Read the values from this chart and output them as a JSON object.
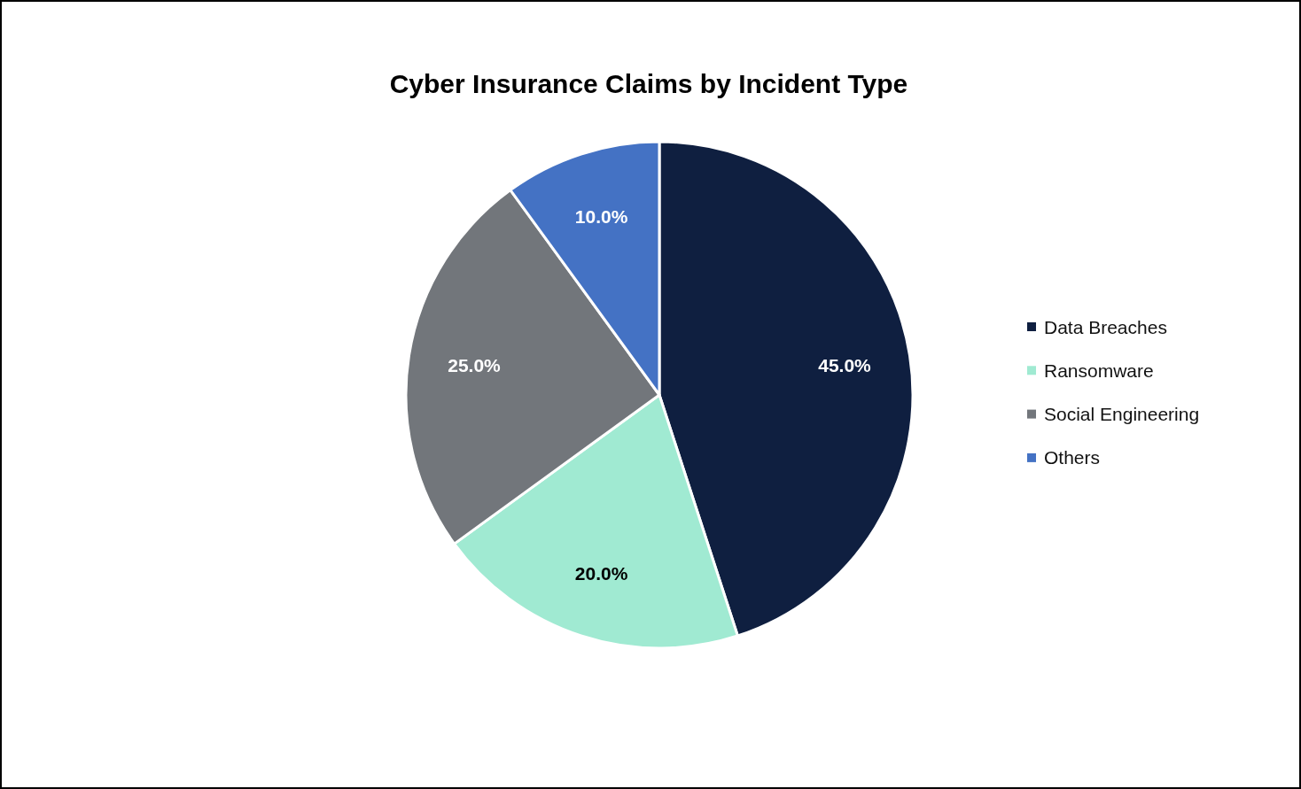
{
  "chart_data": {
    "type": "pie",
    "title": "Cyber Insurance Claims by Incident Type",
    "categories": [
      "Data Breaches",
      "Ransomware",
      "Social Engineering",
      "Others"
    ],
    "values": [
      45,
      20,
      25,
      10
    ],
    "colors": [
      "#0f1f40",
      "#a0ead2",
      "#72767b",
      "#4472c4"
    ],
    "value_labels": [
      "45.0%",
      "20.0%",
      "25.0%",
      "10.0%"
    ],
    "legend": "right"
  }
}
